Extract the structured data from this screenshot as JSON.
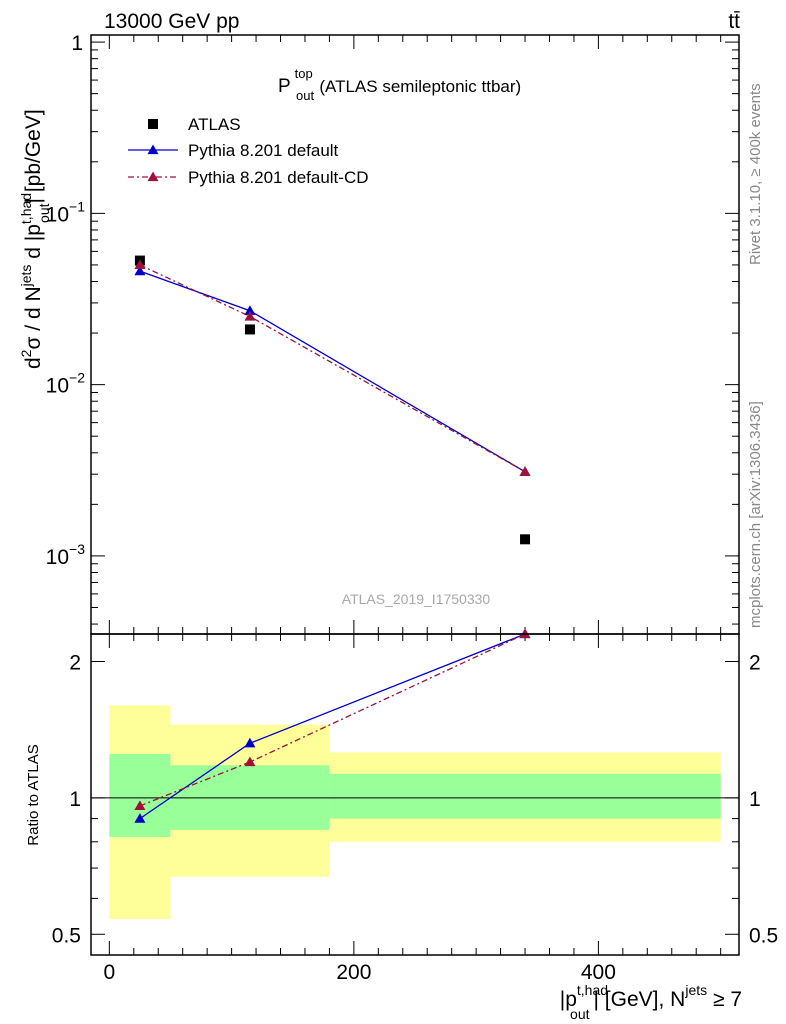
{
  "header": {
    "energy_label": "13000 GeV pp",
    "process_label": "tt̄"
  },
  "side_labels": {
    "rivet": "Rivet 3.1.10, ≥ 400k events",
    "mcplots": "mcplots.cern.ch [arXiv:1306.3436]"
  },
  "chart_data": [
    {
      "type": "scatter",
      "panel": "main",
      "title": {
        "base": "P",
        "sup": "top",
        "sub": "out",
        "rest": " (ATLAS semileptonic ttbar)"
      },
      "watermark": "ATLAS_2019_I1750330",
      "y_scale": "log",
      "ylim": [
        0.00035,
        1.1
      ],
      "xlim": [
        -15,
        515
      ],
      "ylabel": {
        "p1": "d",
        "p1_sup": "2",
        "p2": "σ  /  d N",
        "p2_sup": "jets",
        "p3": " d |p",
        "p3_sup": "t,had",
        "p3_sub": "out",
        "p4": "| [pb/GeV]"
      },
      "y_ticks": [
        {
          "value": 1,
          "label": "1"
        },
        {
          "value": 0.1,
          "base": "10",
          "exp": "−1"
        },
        {
          "value": 0.01,
          "base": "10",
          "exp": "−2"
        },
        {
          "value": 0.001,
          "base": "10",
          "exp": "−3"
        }
      ],
      "legend_position": "top-left",
      "series": [
        {
          "name": "ATLAS",
          "marker": "square",
          "color": "#000000",
          "line": "none",
          "x": [
            25,
            115,
            340
          ],
          "y": [
            0.053,
            0.021,
            0.00125
          ]
        },
        {
          "name": "Pythia 8.201 default",
          "marker": "triangle",
          "color": "#0000cc",
          "line": "solid",
          "x": [
            25,
            115,
            340
          ],
          "y": [
            0.046,
            0.027,
            0.0031
          ]
        },
        {
          "name": "Pythia 8.201 default-CD",
          "marker": "triangle",
          "color": "#a0103a",
          "line": "dashdot",
          "x": [
            25,
            115,
            340
          ],
          "y": [
            0.05,
            0.025,
            0.0031
          ]
        }
      ]
    },
    {
      "type": "line",
      "panel": "ratio",
      "ylabel": "Ratio to ATLAS",
      "y_scale": "log",
      "ylim": [
        0.45,
        2.3
      ],
      "xlim": [
        -15,
        515
      ],
      "y_ticks": [
        {
          "value": 0.5,
          "label": "0.5"
        },
        {
          "value": 1,
          "label": "1"
        },
        {
          "value": 2,
          "label": "2"
        }
      ],
      "x_ticks": [
        {
          "value": 0,
          "label": "0"
        },
        {
          "value": 200,
          "label": "200"
        },
        {
          "value": 400,
          "label": "400"
        }
      ],
      "xlabel": {
        "p1": "|p",
        "p1_sup": "t,had",
        "p1_sub": "out",
        "p2": "| [GeV], N",
        "p2_sup": "jets",
        "p3": " ≥ 7"
      },
      "bands": [
        {
          "x0": 0,
          "x1": 50,
          "outer": [
            0.54,
            1.6
          ],
          "inner": [
            0.82,
            1.25
          ]
        },
        {
          "x0": 50,
          "x1": 180,
          "outer": [
            0.67,
            1.45
          ],
          "inner": [
            0.85,
            1.18
          ]
        },
        {
          "x0": 180,
          "x1": 500,
          "outer": [
            0.8,
            1.26
          ],
          "inner": [
            0.9,
            1.13
          ]
        }
      ],
      "band_colors": {
        "outer": "#ffff99",
        "inner": "#99ff99"
      },
      "series": [
        {
          "name": "Pythia 8.201 default",
          "color": "#0000cc",
          "line": "solid",
          "x": [
            25,
            115,
            340
          ],
          "y": [
            0.9,
            1.32,
            2.3
          ]
        },
        {
          "name": "Pythia 8.201 default-CD",
          "color": "#a0103a",
          "line": "dashdot",
          "x": [
            25,
            115,
            340
          ],
          "y": [
            0.96,
            1.2,
            2.3
          ]
        }
      ]
    }
  ]
}
